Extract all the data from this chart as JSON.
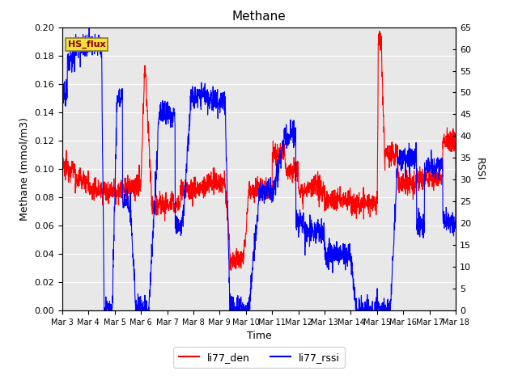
{
  "title": "Methane",
  "xlabel": "Time",
  "ylabel_left": "Methane (mmol/m3)",
  "ylabel_right": "RSSI",
  "ylim_left": [
    0.0,
    0.2
  ],
  "ylim_right": [
    0,
    65
  ],
  "yticks_left": [
    0.0,
    0.02,
    0.04,
    0.06,
    0.08,
    0.1,
    0.12,
    0.14,
    0.16,
    0.18,
    0.2
  ],
  "yticks_right": [
    0,
    5,
    10,
    15,
    20,
    25,
    30,
    35,
    40,
    45,
    50,
    55,
    60,
    65
  ],
  "xtick_labels": [
    "Mar 3",
    "Mar 4",
    "Mar 5",
    "Mar 6",
    "Mar 7",
    "Mar 8",
    "Mar 9",
    "Mar 10",
    "Mar 11",
    "Mar 12",
    "Mar 13",
    "Mar 14",
    "Mar 15",
    "Mar 16",
    "Mar 17",
    "Mar 18"
  ],
  "annotation_text": "HS_flux",
  "bg_color": "#e8e8e8",
  "line_color_red": "red",
  "line_color_blue": "blue",
  "line_width": 0.8,
  "title_fontsize": 11,
  "axis_fontsize": 9,
  "tick_fontsize": 8
}
